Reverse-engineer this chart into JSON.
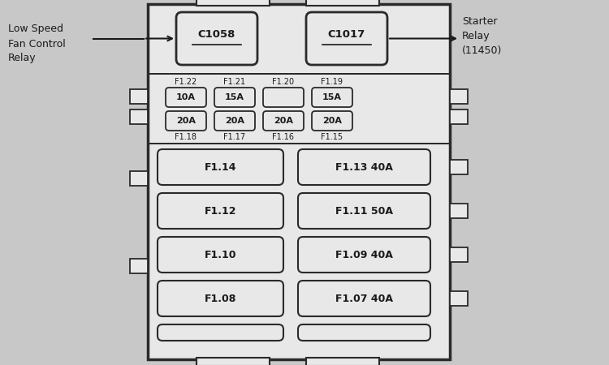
{
  "bg_color": "#c8c8c8",
  "box_fill": "#e8e8e8",
  "box_border": "#2a2a2a",
  "text_color": "#1a1a1a",
  "left_label": "Low Speed\nFan Control\nRelay",
  "right_label": "Starter\nRelay\n(11450)",
  "relay_left": "C1058",
  "relay_right": "C1017",
  "small_fuses_top_labels": [
    "F1.22",
    "F1.21",
    "F1.20",
    "F1.19"
  ],
  "small_fuses_top_values": [
    "10A",
    "15A",
    "",
    "15A"
  ],
  "small_fuses_bot_labels": [
    "F1.18",
    "F1.17",
    "F1.16",
    "F1.15"
  ],
  "small_fuses_bot_values": [
    "20A",
    "20A",
    "20A",
    "20A"
  ],
  "large_fuses": [
    [
      "F1.14",
      "F1.13 40A"
    ],
    [
      "F1.12",
      "F1.11 50A"
    ],
    [
      "F1.10",
      "F1.09 40A"
    ],
    [
      "F1.08",
      "F1.07 40A"
    ]
  ]
}
